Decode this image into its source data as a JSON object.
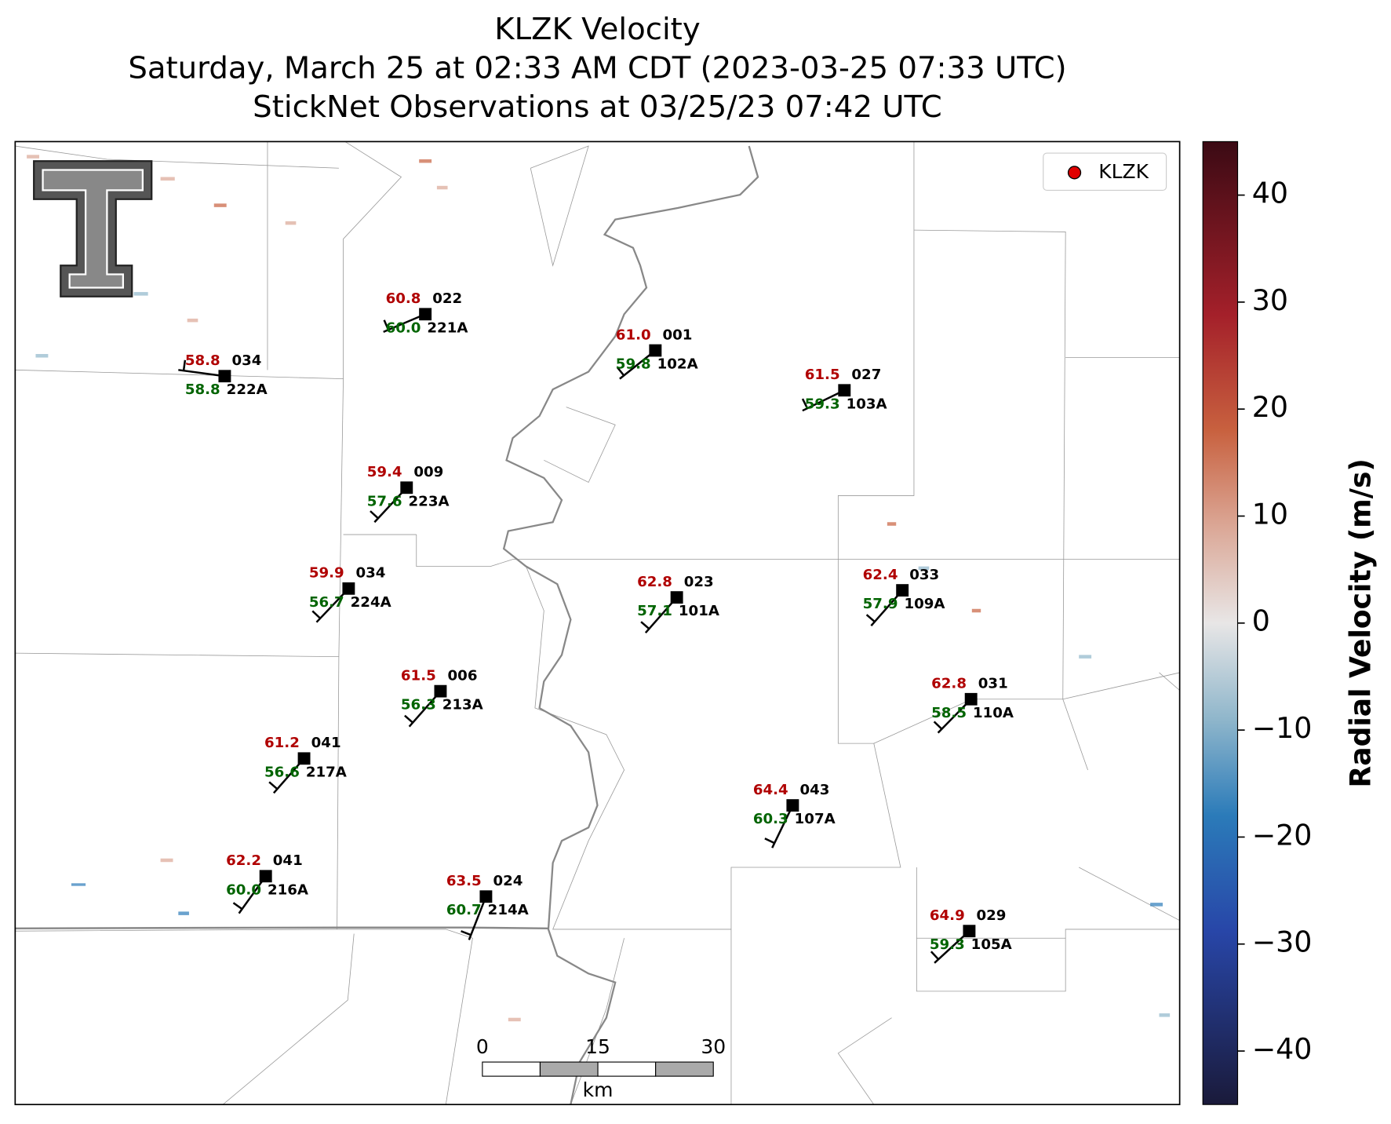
{
  "title": "KLZK Velocity",
  "subtitle": "Saturday, March 25 at 02:33 AM CDT (2023-03-25 07:33 UTC)",
  "observations_title": "StickNet Observations at 03/25/23 07:42 UTC",
  "legend": {
    "label": "KLZK",
    "color": "#e00000"
  },
  "stations": [
    {
      "id": "221A",
      "temperature": "60.8",
      "dewpoint": "60.0",
      "code": "022"
    },
    {
      "id": "222A",
      "temperature": "58.8",
      "dewpoint": "58.8",
      "code": "034"
    },
    {
      "id": "102A",
      "temperature": "61.0",
      "dewpoint": "59.8",
      "code": "001"
    },
    {
      "id": "103A",
      "temperature": "61.5",
      "dewpoint": "59.3",
      "code": "027"
    },
    {
      "id": "223A",
      "temperature": "59.4",
      "dewpoint": "57.6",
      "code": "009"
    },
    {
      "id": "224A",
      "temperature": "59.9",
      "dewpoint": "56.7",
      "code": "034"
    },
    {
      "id": "101A",
      "temperature": "62.8",
      "dewpoint": "57.1",
      "code": "023"
    },
    {
      "id": "109A",
      "temperature": "62.4",
      "dewpoint": "57.9",
      "code": "033"
    },
    {
      "id": "213A",
      "temperature": "61.5",
      "dewpoint": "56.3",
      "code": "006"
    },
    {
      "id": "110A",
      "temperature": "62.8",
      "dewpoint": "58.5",
      "code": "031"
    },
    {
      "id": "217A",
      "temperature": "61.2",
      "dewpoint": "56.6",
      "code": "041"
    },
    {
      "id": "107A",
      "temperature": "64.4",
      "dewpoint": "60.3",
      "code": "043"
    },
    {
      "id": "216A",
      "temperature": "62.2",
      "dewpoint": "60.0",
      "code": "041"
    },
    {
      "id": "214A",
      "temperature": "63.5",
      "dewpoint": "60.7",
      "code": "024"
    },
    {
      "id": "105A",
      "temperature": "64.9",
      "dewpoint": "59.3",
      "code": "029"
    }
  ],
  "colorbar": {
    "label": "Radial Velocity (m/s)",
    "lim": [
      -45,
      45
    ],
    "ticks": [
      {
        "value": -40,
        "label": "−40"
      },
      {
        "value": -30,
        "label": "−30"
      },
      {
        "value": -20,
        "label": "−20"
      },
      {
        "value": -10,
        "label": "−10"
      },
      0,
      10,
      20,
      30,
      40
    ]
  },
  "scale_bar": {
    "ticks": [
      0,
      15,
      30
    ],
    "unit": "km"
  }
}
